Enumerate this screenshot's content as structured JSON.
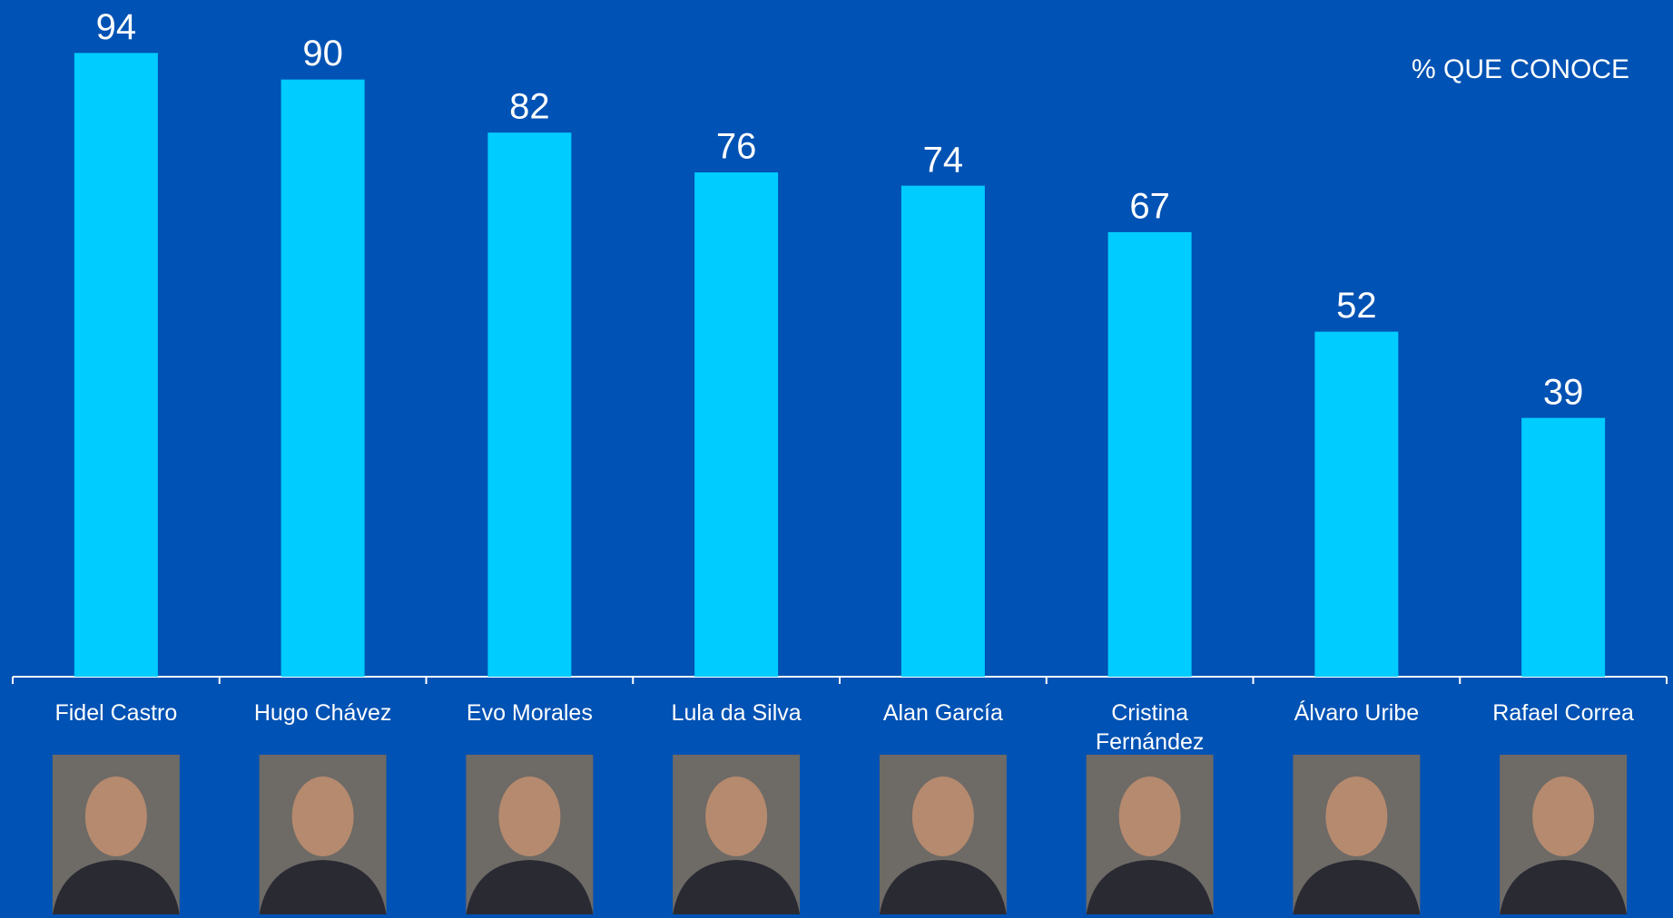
{
  "chart_data": {
    "type": "bar",
    "annotation": "% QUE CONOCE",
    "categories": [
      "Fidel Castro",
      "Hugo Chávez",
      "Evo Morales",
      "Lula da Silva",
      "Alan García",
      "Cristina Fernández",
      "Álvaro Uribe",
      "Rafael Correa"
    ],
    "values": [
      94,
      90,
      82,
      76,
      74,
      67,
      52,
      39
    ],
    "color": "#00ccff",
    "ylim": [
      0,
      100
    ]
  }
}
